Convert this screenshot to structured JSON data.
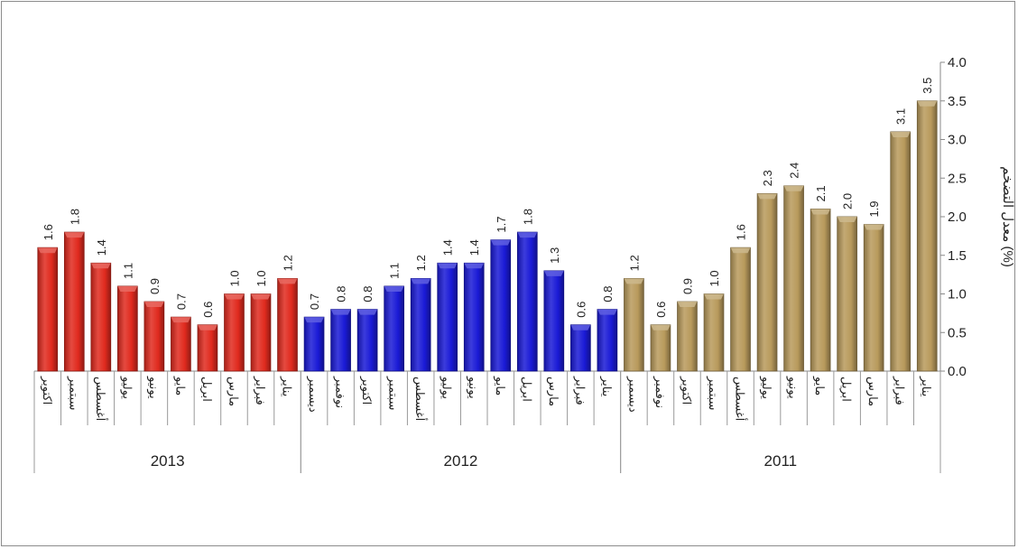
{
  "chart_data": {
    "type": "bar",
    "ylabel": "معدل التضخم (%)",
    "ylim": [
      0,
      4.0
    ],
    "yticks": [
      "0.0",
      "0.5",
      "1.0",
      "1.5",
      "2.0",
      "2.5",
      "3.0",
      "3.5",
      "4.0"
    ],
    "y_axis_position": "right",
    "x_direction": "right-to-left",
    "grid": false,
    "groups": [
      {
        "year": "2011",
        "color": "#b89a5c",
        "months": [
          "يناير",
          "فبراير",
          "مارس",
          "ابريل",
          "مايو",
          "يونيو",
          "يوليو",
          "أغسطس",
          "سبتمبر",
          "اكتوبر",
          "نوفمبر",
          "ديسمبر"
        ],
        "values": [
          3.5,
          3.1,
          1.9,
          2.0,
          2.1,
          2.4,
          2.3,
          1.6,
          1.0,
          0.9,
          0.6,
          1.2
        ]
      },
      {
        "year": "2012",
        "color": "#1a1ad6",
        "months": [
          "يناير",
          "فبراير",
          "مارس",
          "ابريل",
          "مايو",
          "يونيو",
          "يوليو",
          "أغسطس",
          "سبتمبر",
          "اكتوبر",
          "نوفمبر",
          "ديسمبر"
        ],
        "values": [
          0.8,
          0.6,
          1.3,
          1.8,
          1.7,
          1.4,
          1.4,
          1.2,
          1.1,
          0.8,
          0.8,
          0.7
        ]
      },
      {
        "year": "2013",
        "color": "#e02a1e",
        "months": [
          "يناير",
          "فبراير",
          "مارس",
          "ابريل",
          "مايو",
          "يونيو",
          "يوليو",
          "أغسطس",
          "سبتمبر",
          "اكتوبر"
        ],
        "values": [
          1.2,
          1.0,
          1.0,
          0.6,
          0.7,
          0.9,
          1.1,
          1.4,
          1.8,
          1.6
        ]
      }
    ]
  }
}
